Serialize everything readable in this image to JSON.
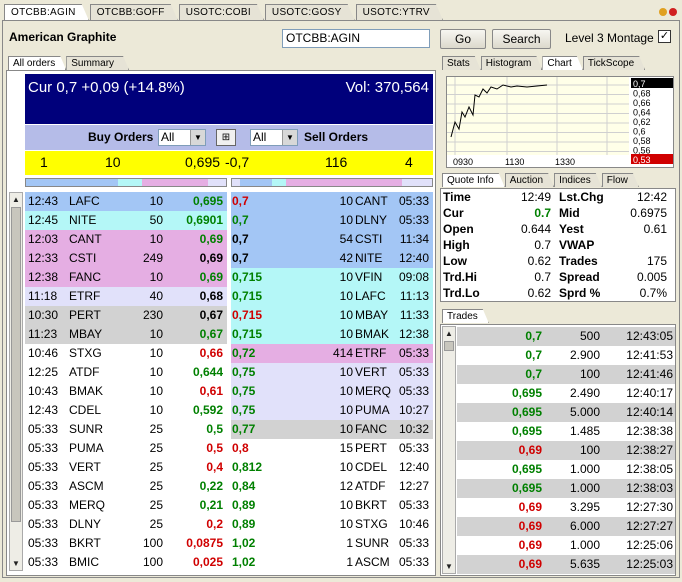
{
  "top_tabs": [
    "OTCBB:AGIN",
    "OTCBB:GOFF",
    "USOTC:COBI",
    "USOTC:GOSY",
    "USOTC:YTRV"
  ],
  "header": {
    "company": "American Graphite",
    "symbol": "OTCBB:AGIN",
    "go": "Go",
    "search": "Search",
    "montage_label": "Level 3 Montage",
    "montage_checked": "✓"
  },
  "left_tabs": [
    "All orders",
    "Summary"
  ],
  "summary": {
    "cur": "Cur 0,7 +0,09 (+14.8%)",
    "vol": "Vol: 370,564"
  },
  "filters": {
    "buy_label": "Buy Orders",
    "buy_select": "All",
    "sell_select": "All",
    "sell_label": "Sell Orders"
  },
  "best": {
    "bid_count": "1",
    "bid_size": "10",
    "bid_price": "0,695",
    "ask_price": "-0,7",
    "ask_size": "116",
    "ask_count": "4"
  },
  "colors": {
    "blue": "#a3c6f5",
    "cyan": "#b4f7f7",
    "pink": "#e5aee3",
    "lavender": "#e1e1fa",
    "gray": "#d2d2d2",
    "white": "#ffffff",
    "navy": "#00007b"
  },
  "buy_orders": [
    {
      "time": "12:43",
      "mm": "LAFC",
      "size": "10",
      "price": "0,695",
      "pc": "green",
      "bg": "blue"
    },
    {
      "time": "12:45",
      "mm": "NITE",
      "size": "50",
      "price": "0,6901",
      "pc": "green",
      "bg": "cyan"
    },
    {
      "time": "12:03",
      "mm": "CANT",
      "size": "10",
      "price": "0,69",
      "pc": "green",
      "bg": "pink"
    },
    {
      "time": "12:33",
      "mm": "CSTI",
      "size": "249",
      "price": "0,69",
      "pc": "black",
      "bg": "pink"
    },
    {
      "time": "12:38",
      "mm": "FANC",
      "size": "10",
      "price": "0,69",
      "pc": "green",
      "bg": "pink"
    },
    {
      "time": "11:18",
      "mm": "ETRF",
      "size": "40",
      "price": "0,68",
      "pc": "black",
      "bg": "lavender"
    },
    {
      "time": "10:30",
      "mm": "PERT",
      "size": "230",
      "price": "0,67",
      "pc": "black",
      "bg": "gray"
    },
    {
      "time": "11:23",
      "mm": "MBAY",
      "size": "10",
      "price": "0,67",
      "pc": "green",
      "bg": "gray"
    },
    {
      "time": "10:46",
      "mm": "STXG",
      "size": "10",
      "price": "0,66",
      "pc": "red",
      "bg": "white"
    },
    {
      "time": "12:25",
      "mm": "ATDF",
      "size": "10",
      "price": "0,644",
      "pc": "green",
      "bg": "white"
    },
    {
      "time": "10:43",
      "mm": "BMAK",
      "size": "10",
      "price": "0,61",
      "pc": "red",
      "bg": "white"
    },
    {
      "time": "12:43",
      "mm": "CDEL",
      "size": "10",
      "price": "0,592",
      "pc": "green",
      "bg": "white"
    },
    {
      "time": "05:33",
      "mm": "SUNR",
      "size": "25",
      "price": "0,5",
      "pc": "green",
      "bg": "white"
    },
    {
      "time": "05:33",
      "mm": "PUMA",
      "size": "25",
      "price": "0,5",
      "pc": "red",
      "bg": "white"
    },
    {
      "time": "05:33",
      "mm": "VERT",
      "size": "25",
      "price": "0,4",
      "pc": "red",
      "bg": "white"
    },
    {
      "time": "05:33",
      "mm": "ASCM",
      "size": "25",
      "price": "0,22",
      "pc": "green",
      "bg": "white"
    },
    {
      "time": "05:33",
      "mm": "MERQ",
      "size": "25",
      "price": "0,21",
      "pc": "green",
      "bg": "white"
    },
    {
      "time": "05:33",
      "mm": "DLNY",
      "size": "25",
      "price": "0,2",
      "pc": "red",
      "bg": "white"
    },
    {
      "time": "05:33",
      "mm": "BKRT",
      "size": "100",
      "price": "0,0875",
      "pc": "red",
      "bg": "white"
    },
    {
      "time": "05:33",
      "mm": "BMIC",
      "size": "100",
      "price": "0,025",
      "pc": "red",
      "bg": "white"
    }
  ],
  "sell_orders": [
    {
      "price": "0,7",
      "pc": "red",
      "size": "10",
      "mm": "CANT",
      "time": "05:33",
      "bg": "blue"
    },
    {
      "price": "0,7",
      "pc": "green",
      "size": "10",
      "mm": "DLNY",
      "time": "05:33",
      "bg": "blue"
    },
    {
      "price": "0,7",
      "pc": "black",
      "size": "54",
      "mm": "CSTI",
      "time": "11:34",
      "bg": "blue"
    },
    {
      "price": "0,7",
      "pc": "black",
      "size": "42",
      "mm": "NITE",
      "time": "12:40",
      "bg": "blue"
    },
    {
      "price": "0,715",
      "pc": "green",
      "size": "10",
      "mm": "VFIN",
      "time": "09:08",
      "bg": "cyan"
    },
    {
      "price": "0,715",
      "pc": "green",
      "size": "10",
      "mm": "LAFC",
      "time": "11:13",
      "bg": "cyan"
    },
    {
      "price": "0,715",
      "pc": "red",
      "size": "10",
      "mm": "MBAY",
      "time": "11:33",
      "bg": "cyan"
    },
    {
      "price": "0,715",
      "pc": "green",
      "size": "10",
      "mm": "BMAK",
      "time": "12:38",
      "bg": "cyan"
    },
    {
      "price": "0,72",
      "pc": "green",
      "size": "414",
      "mm": "ETRF",
      "time": "05:33",
      "bg": "pink"
    },
    {
      "price": "0,75",
      "pc": "green",
      "size": "10",
      "mm": "VERT",
      "time": "05:33",
      "bg": "lavender"
    },
    {
      "price": "0,75",
      "pc": "green",
      "size": "10",
      "mm": "MERQ",
      "time": "05:33",
      "bg": "lavender"
    },
    {
      "price": "0,75",
      "pc": "green",
      "size": "10",
      "mm": "PUMA",
      "time": "10:27",
      "bg": "lavender"
    },
    {
      "price": "0,77",
      "pc": "green",
      "size": "10",
      "mm": "FANC",
      "time": "10:32",
      "bg": "gray"
    },
    {
      "price": "0,8",
      "pc": "red",
      "size": "15",
      "mm": "PERT",
      "time": "05:33",
      "bg": "white"
    },
    {
      "price": "0,812",
      "pc": "green",
      "size": "10",
      "mm": "CDEL",
      "time": "12:40",
      "bg": "white"
    },
    {
      "price": "0,84",
      "pc": "green",
      "size": "12",
      "mm": "ATDF",
      "time": "12:27",
      "bg": "white"
    },
    {
      "price": "0,89",
      "pc": "green",
      "size": "10",
      "mm": "BKRT",
      "time": "05:33",
      "bg": "white"
    },
    {
      "price": "0,89",
      "pc": "green",
      "size": "10",
      "mm": "STXG",
      "time": "10:46",
      "bg": "white"
    },
    {
      "price": "1,02",
      "pc": "green",
      "size": "1",
      "mm": "SUNR",
      "time": "05:33",
      "bg": "white"
    },
    {
      "price": "1,02",
      "pc": "green",
      "size": "1",
      "mm": "ASCM",
      "time": "05:33",
      "bg": "white"
    }
  ],
  "right_tabs": [
    "Stats",
    "Histogram",
    "Chart",
    "TickScope"
  ],
  "chart": {
    "x_labels": [
      "0930",
      "1130",
      "1330"
    ],
    "y_labels": [
      "0,7",
      "0,68",
      "0,66",
      "0,64",
      "0,62",
      "0,6",
      "0,58",
      "0,56",
      "0,53"
    ],
    "current_price": "0,7",
    "low_price": "0,53"
  },
  "quote_tabs": [
    "Quote Info",
    "Auction",
    "Indices",
    "Flow"
  ],
  "quote": [
    {
      "l1": "Time",
      "v1": "12:49",
      "l2": "Lst.Chg",
      "v2": "12:42",
      "c1": ""
    },
    {
      "l1": "Cur",
      "v1": "0.7",
      "l2": "Mid",
      "v2": "0.6975",
      "c1": "green"
    },
    {
      "l1": "Open",
      "v1": "0.644",
      "l2": "Yest",
      "v2": "0.61",
      "c1": ""
    },
    {
      "l1": "High",
      "v1": "0.7",
      "l2": "VWAP",
      "v2": "",
      "c1": ""
    },
    {
      "l1": "Low",
      "v1": "0.62",
      "l2": "Trades",
      "v2": "175",
      "c1": ""
    },
    {
      "l1": "Trd.Hi",
      "v1": "0.7",
      "l2": "Spread",
      "v2": "0.005",
      "c1": ""
    },
    {
      "l1": "Trd.Lo",
      "v1": "0.62",
      "l2": "Sprd %",
      "v2": "0.7%",
      "c1": ""
    }
  ],
  "trades_tab": "Trades",
  "trades": [
    {
      "price": "0,7",
      "pc": "green",
      "size": "500",
      "time": "12:43:05",
      "bg": "gray"
    },
    {
      "price": "0,7",
      "pc": "green",
      "size": "2.900",
      "time": "12:41:53",
      "bg": "white"
    },
    {
      "price": "0,7",
      "pc": "green",
      "size": "100",
      "time": "12:41:46",
      "bg": "gray"
    },
    {
      "price": "0,695",
      "pc": "green",
      "size": "2.490",
      "time": "12:40:17",
      "bg": "white"
    },
    {
      "price": "0,695",
      "pc": "green",
      "size": "5.000",
      "time": "12:40:14",
      "bg": "gray"
    },
    {
      "price": "0,695",
      "pc": "green",
      "size": "1.485",
      "time": "12:38:38",
      "bg": "white"
    },
    {
      "price": "0,69",
      "pc": "red",
      "size": "100",
      "time": "12:38:27",
      "bg": "gray"
    },
    {
      "price": "0,695",
      "pc": "green",
      "size": "1.000",
      "time": "12:38:05",
      "bg": "white"
    },
    {
      "price": "0,695",
      "pc": "green",
      "size": "1.000",
      "time": "12:38:03",
      "bg": "gray"
    },
    {
      "price": "0,69",
      "pc": "red",
      "size": "3.295",
      "time": "12:27:30",
      "bg": "white"
    },
    {
      "price": "0,69",
      "pc": "red",
      "size": "6.000",
      "time": "12:27:27",
      "bg": "gray"
    },
    {
      "price": "0,69",
      "pc": "red",
      "size": "1.000",
      "time": "12:25:06",
      "bg": "white"
    },
    {
      "price": "0,69",
      "pc": "red",
      "size": "5.635",
      "time": "12:25:03",
      "bg": "gray"
    }
  ]
}
